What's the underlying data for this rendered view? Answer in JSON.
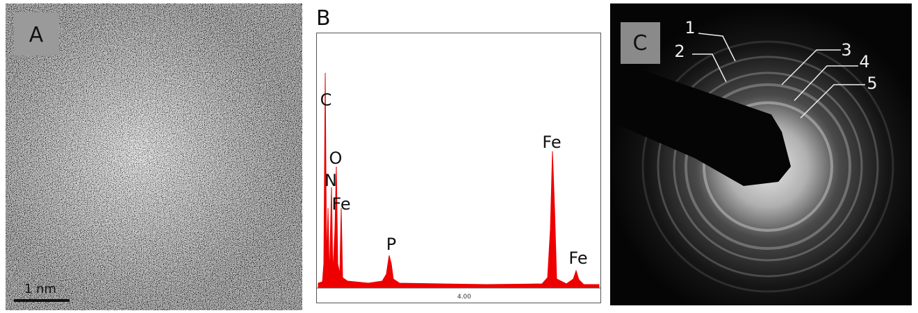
{
  "panels": {
    "a": {
      "label": "A",
      "scale_bar": "1 nm"
    },
    "b": {
      "label": "B",
      "peaks": [
        "C",
        "O",
        "N",
        "Fe",
        "P",
        "Fe",
        "Fe"
      ],
      "axis_tick": "4.00"
    },
    "c": {
      "label": "C",
      "rings": [
        "1",
        "2",
        "3",
        "4",
        "5"
      ]
    }
  }
}
